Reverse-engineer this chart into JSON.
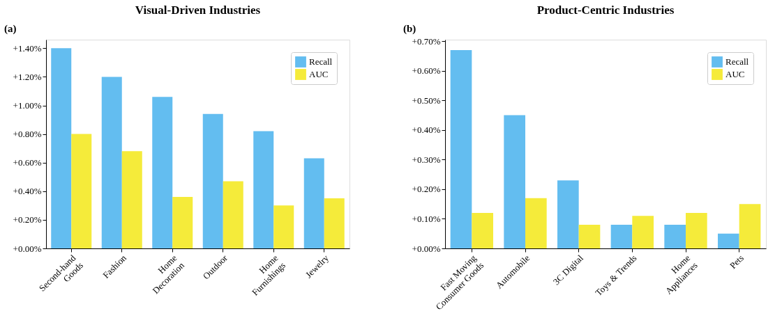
{
  "chart_data": [
    {
      "type": "bar",
      "title": "Visual-Driven Industries",
      "annotations": [
        "(a)"
      ],
      "categories": [
        "Second-hand\nGoods",
        "Fashion",
        "Home\nDecoration",
        "Outdoor",
        "Home\nFurnishings",
        "Jewelry"
      ],
      "series": [
        {
          "name": "Recall",
          "color": "#63bdf0",
          "values": [
            1.4,
            1.2,
            1.06,
            0.94,
            0.82,
            0.63
          ]
        },
        {
          "name": "AUC",
          "color": "#f5eb3a",
          "values": [
            0.8,
            0.68,
            0.36,
            0.47,
            0.3,
            0.35
          ]
        }
      ],
      "ylim": [
        0,
        1.46
      ],
      "yticks": [
        {
          "value": 0,
          "label": "+0.00%"
        },
        {
          "value": 0.2,
          "label": "+0.20%"
        },
        {
          "value": 0.4,
          "label": "+0.40%"
        },
        {
          "value": 0.6,
          "label": "+0.60%"
        },
        {
          "value": 0.8,
          "label": "+0.80%"
        },
        {
          "value": 1.0,
          "label": "+1.00%"
        },
        {
          "value": 1.2,
          "label": "+1.20%"
        },
        {
          "value": 1.4,
          "label": "+1.40%"
        }
      ],
      "legend": "top right",
      "grid": false
    },
    {
      "type": "bar",
      "title": "Product-Centric Industries",
      "annotations": [
        "(b)"
      ],
      "categories": [
        "Fast Moving\nConsumer Goods",
        "Automobile",
        "3C Digital",
        "Toys & Trends",
        "Home\nAppliances",
        "Pets"
      ],
      "series": [
        {
          "name": "Recall",
          "color": "#63bdf0",
          "values": [
            0.67,
            0.45,
            0.23,
            0.08,
            0.08,
            0.05
          ]
        },
        {
          "name": "AUC",
          "color": "#f5eb3a",
          "values": [
            0.12,
            0.17,
            0.08,
            0.11,
            0.12,
            0.15
          ]
        }
      ],
      "ylim": [
        0,
        0.705
      ],
      "yticks": [
        {
          "value": 0,
          "label": "+0.00%"
        },
        {
          "value": 0.1,
          "label": "+0.10%"
        },
        {
          "value": 0.2,
          "label": "+0.20%"
        },
        {
          "value": 0.3,
          "label": "+0.30%"
        },
        {
          "value": 0.4,
          "label": "+0.40%"
        },
        {
          "value": 0.5,
          "label": "+0.50%"
        },
        {
          "value": 0.6,
          "label": "+0.60%"
        },
        {
          "value": 0.7,
          "label": "+0.70%"
        }
      ],
      "legend": "top right",
      "grid": false
    }
  ]
}
